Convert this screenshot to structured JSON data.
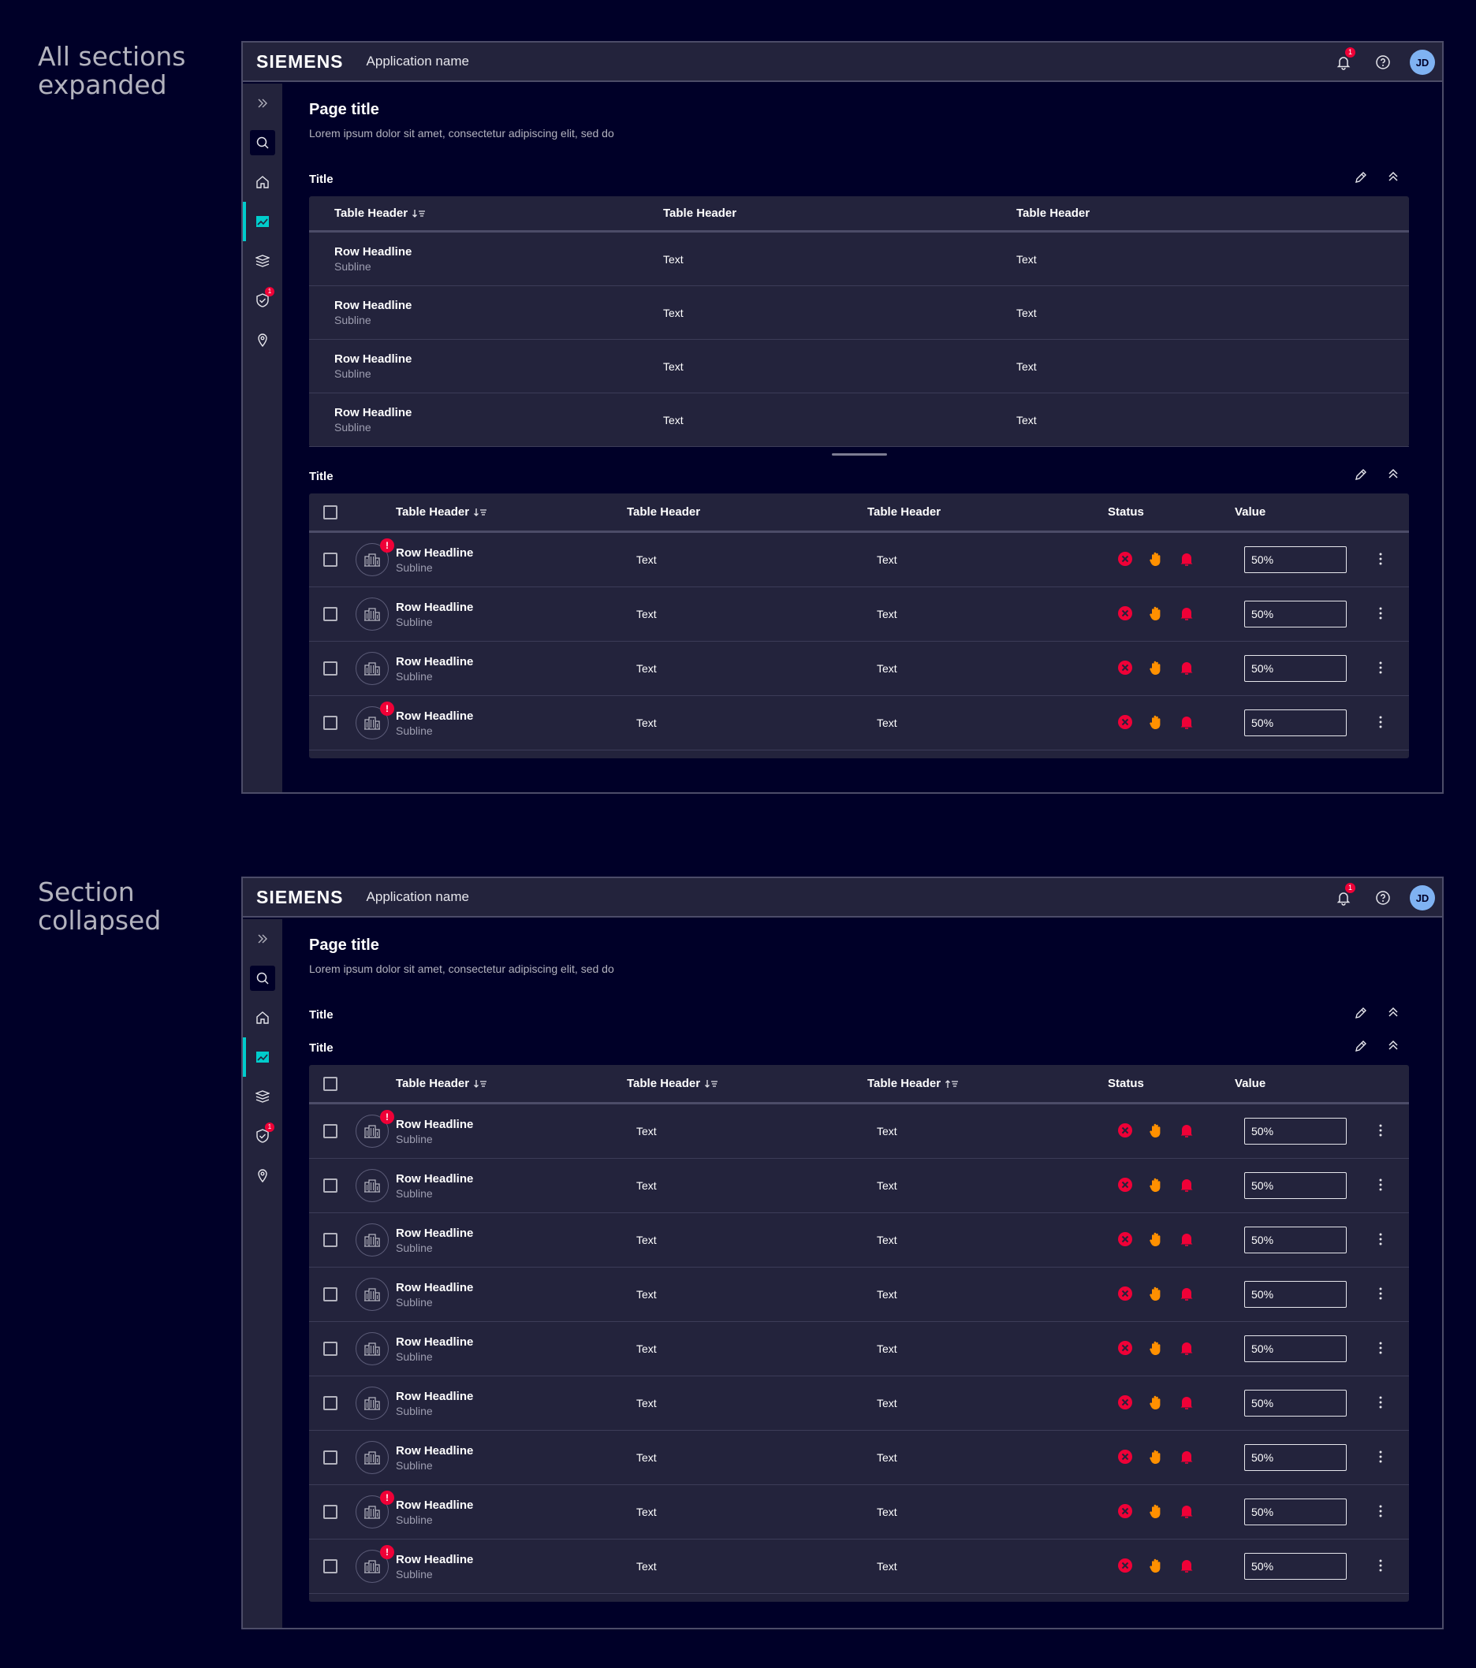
{
  "captions": {
    "expanded": "All sections expanded",
    "collapsed": "Section collapsed"
  },
  "header": {
    "logo": "SIEMENS",
    "app_name": "Application name",
    "notif_count": "1",
    "avatar": "JD"
  },
  "side": {
    "badge": "1"
  },
  "page": {
    "title": "Page title",
    "subtitle": "Lorem ipsum dolor sit amet, consectetur adipiscing elit, sed do"
  },
  "section_title": "Title",
  "simple_table": {
    "headers": [
      "Table Header",
      "Table Header",
      "Table Header"
    ],
    "rows": [
      {
        "headline": "Row Headline",
        "subline": "Subline",
        "c2": "Text",
        "c3": "Text"
      },
      {
        "headline": "Row Headline",
        "subline": "Subline",
        "c2": "Text",
        "c3": "Text"
      },
      {
        "headline": "Row Headline",
        "subline": "Subline",
        "c2": "Text",
        "c3": "Text"
      },
      {
        "headline": "Row Headline",
        "subline": "Subline",
        "c2": "Text",
        "c3": "Text"
      }
    ]
  },
  "rich_table": {
    "headers": [
      "Table Header",
      "Table Header",
      "Table Header",
      "Status",
      "Value"
    ],
    "value": "50%",
    "alert": "!",
    "rows_expanded": [
      {
        "headline": "Row Headline",
        "subline": "Subline",
        "c2": "Text",
        "c3": "Text",
        "alert": true
      },
      {
        "headline": "Row Headline",
        "subline": "Subline",
        "c2": "Text",
        "c3": "Text",
        "alert": false
      },
      {
        "headline": "Row Headline",
        "subline": "Subline",
        "c2": "Text",
        "c3": "Text",
        "alert": false
      },
      {
        "headline": "Row Headline",
        "subline": "Subline",
        "c2": "Text",
        "c3": "Text",
        "alert": true
      }
    ],
    "rows_collapsed": [
      {
        "headline": "Row Headline",
        "subline": "Subline",
        "c2": "Text",
        "c3": "Text",
        "alert": true
      },
      {
        "headline": "Row Headline",
        "subline": "Subline",
        "c2": "Text",
        "c3": "Text",
        "alert": false
      },
      {
        "headline": "Row Headline",
        "subline": "Subline",
        "c2": "Text",
        "c3": "Text",
        "alert": false
      },
      {
        "headline": "Row Headline",
        "subline": "Subline",
        "c2": "Text",
        "c3": "Text",
        "alert": false
      },
      {
        "headline": "Row Headline",
        "subline": "Subline",
        "c2": "Text",
        "c3": "Text",
        "alert": false
      },
      {
        "headline": "Row Headline",
        "subline": "Subline",
        "c2": "Text",
        "c3": "Text",
        "alert": false
      },
      {
        "headline": "Row Headline",
        "subline": "Subline",
        "c2": "Text",
        "c3": "Text",
        "alert": false
      },
      {
        "headline": "Row Headline",
        "subline": "Subline",
        "c2": "Text",
        "c3": "Text",
        "alert": true
      },
      {
        "headline": "Row Headline",
        "subline": "Subline",
        "c2": "Text",
        "c3": "Text",
        "alert": true
      }
    ]
  },
  "colors": {
    "accent": "#00cccc",
    "danger": "#ef0137",
    "warning": "#ff9000"
  }
}
